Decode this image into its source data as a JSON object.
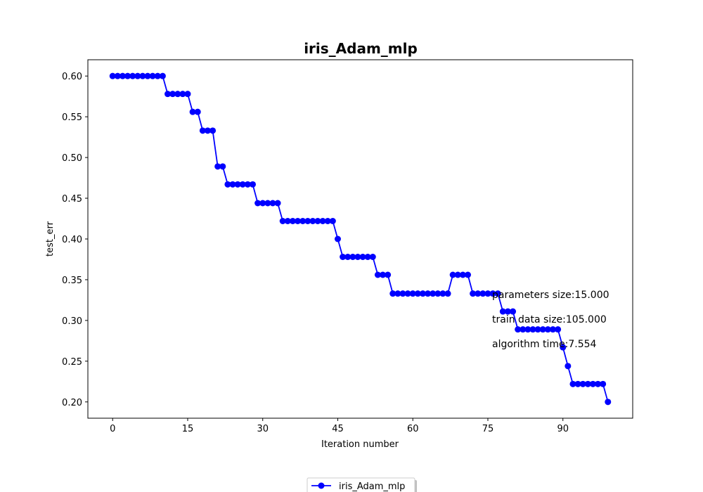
{
  "chart_data": {
    "type": "line",
    "title": "iris_Adam_mlp",
    "xlabel": "Iteration number",
    "ylabel": "test_err",
    "xlim": [
      -4.95,
      103.95
    ],
    "ylim": [
      0.18,
      0.62
    ],
    "xticks": [
      0,
      15,
      30,
      45,
      60,
      75,
      90
    ],
    "yticks": [
      0.2,
      0.25,
      0.3,
      0.35,
      0.4,
      0.45,
      0.5,
      0.55,
      0.6
    ],
    "ytick_labels": [
      "0.20",
      "0.25",
      "0.30",
      "0.35",
      "0.40",
      "0.45",
      "0.50",
      "0.55",
      "0.60"
    ],
    "grid": false,
    "legend_position": "bottom-center",
    "series": [
      {
        "name": "iris_Adam_mlp",
        "color": "#0000ff",
        "marker": "circle",
        "x": [
          0,
          1,
          2,
          3,
          4,
          5,
          6,
          7,
          8,
          9,
          10,
          11,
          12,
          13,
          14,
          15,
          16,
          17,
          18,
          19,
          20,
          21,
          22,
          23,
          24,
          25,
          26,
          27,
          28,
          29,
          30,
          31,
          32,
          33,
          34,
          35,
          36,
          37,
          38,
          39,
          40,
          41,
          42,
          43,
          44,
          45,
          46,
          47,
          48,
          49,
          50,
          51,
          52,
          53,
          54,
          55,
          56,
          57,
          58,
          59,
          60,
          61,
          62,
          63,
          64,
          65,
          66,
          67,
          68,
          69,
          70,
          71,
          72,
          73,
          74,
          75,
          76,
          77,
          78,
          79,
          80,
          81,
          82,
          83,
          84,
          85,
          86,
          87,
          88,
          89,
          90,
          91,
          92,
          93,
          94,
          95,
          96,
          97,
          98,
          99
        ],
        "values": [
          0.6,
          0.6,
          0.6,
          0.6,
          0.6,
          0.6,
          0.6,
          0.6,
          0.6,
          0.6,
          0.6,
          0.578,
          0.578,
          0.578,
          0.578,
          0.578,
          0.556,
          0.556,
          0.533,
          0.533,
          0.533,
          0.489,
          0.489,
          0.467,
          0.467,
          0.467,
          0.467,
          0.467,
          0.467,
          0.444,
          0.444,
          0.444,
          0.444,
          0.444,
          0.422,
          0.422,
          0.422,
          0.422,
          0.422,
          0.422,
          0.422,
          0.422,
          0.422,
          0.422,
          0.422,
          0.4,
          0.378,
          0.378,
          0.378,
          0.378,
          0.378,
          0.378,
          0.378,
          0.356,
          0.356,
          0.356,
          0.333,
          0.333,
          0.333,
          0.333,
          0.333,
          0.333,
          0.333,
          0.333,
          0.333,
          0.333,
          0.333,
          0.333,
          0.356,
          0.356,
          0.356,
          0.356,
          0.333,
          0.333,
          0.333,
          0.333,
          0.333,
          0.333,
          0.311,
          0.311,
          0.311,
          0.289,
          0.289,
          0.289,
          0.289,
          0.289,
          0.289,
          0.289,
          0.289,
          0.289,
          0.267,
          0.244,
          0.222,
          0.222,
          0.222,
          0.222,
          0.222,
          0.222,
          0.222,
          0.2
        ]
      }
    ],
    "annotations": [
      "parameters size:15.000",
      "train data size:105.000",
      "algorithm time:7.554"
    ]
  }
}
